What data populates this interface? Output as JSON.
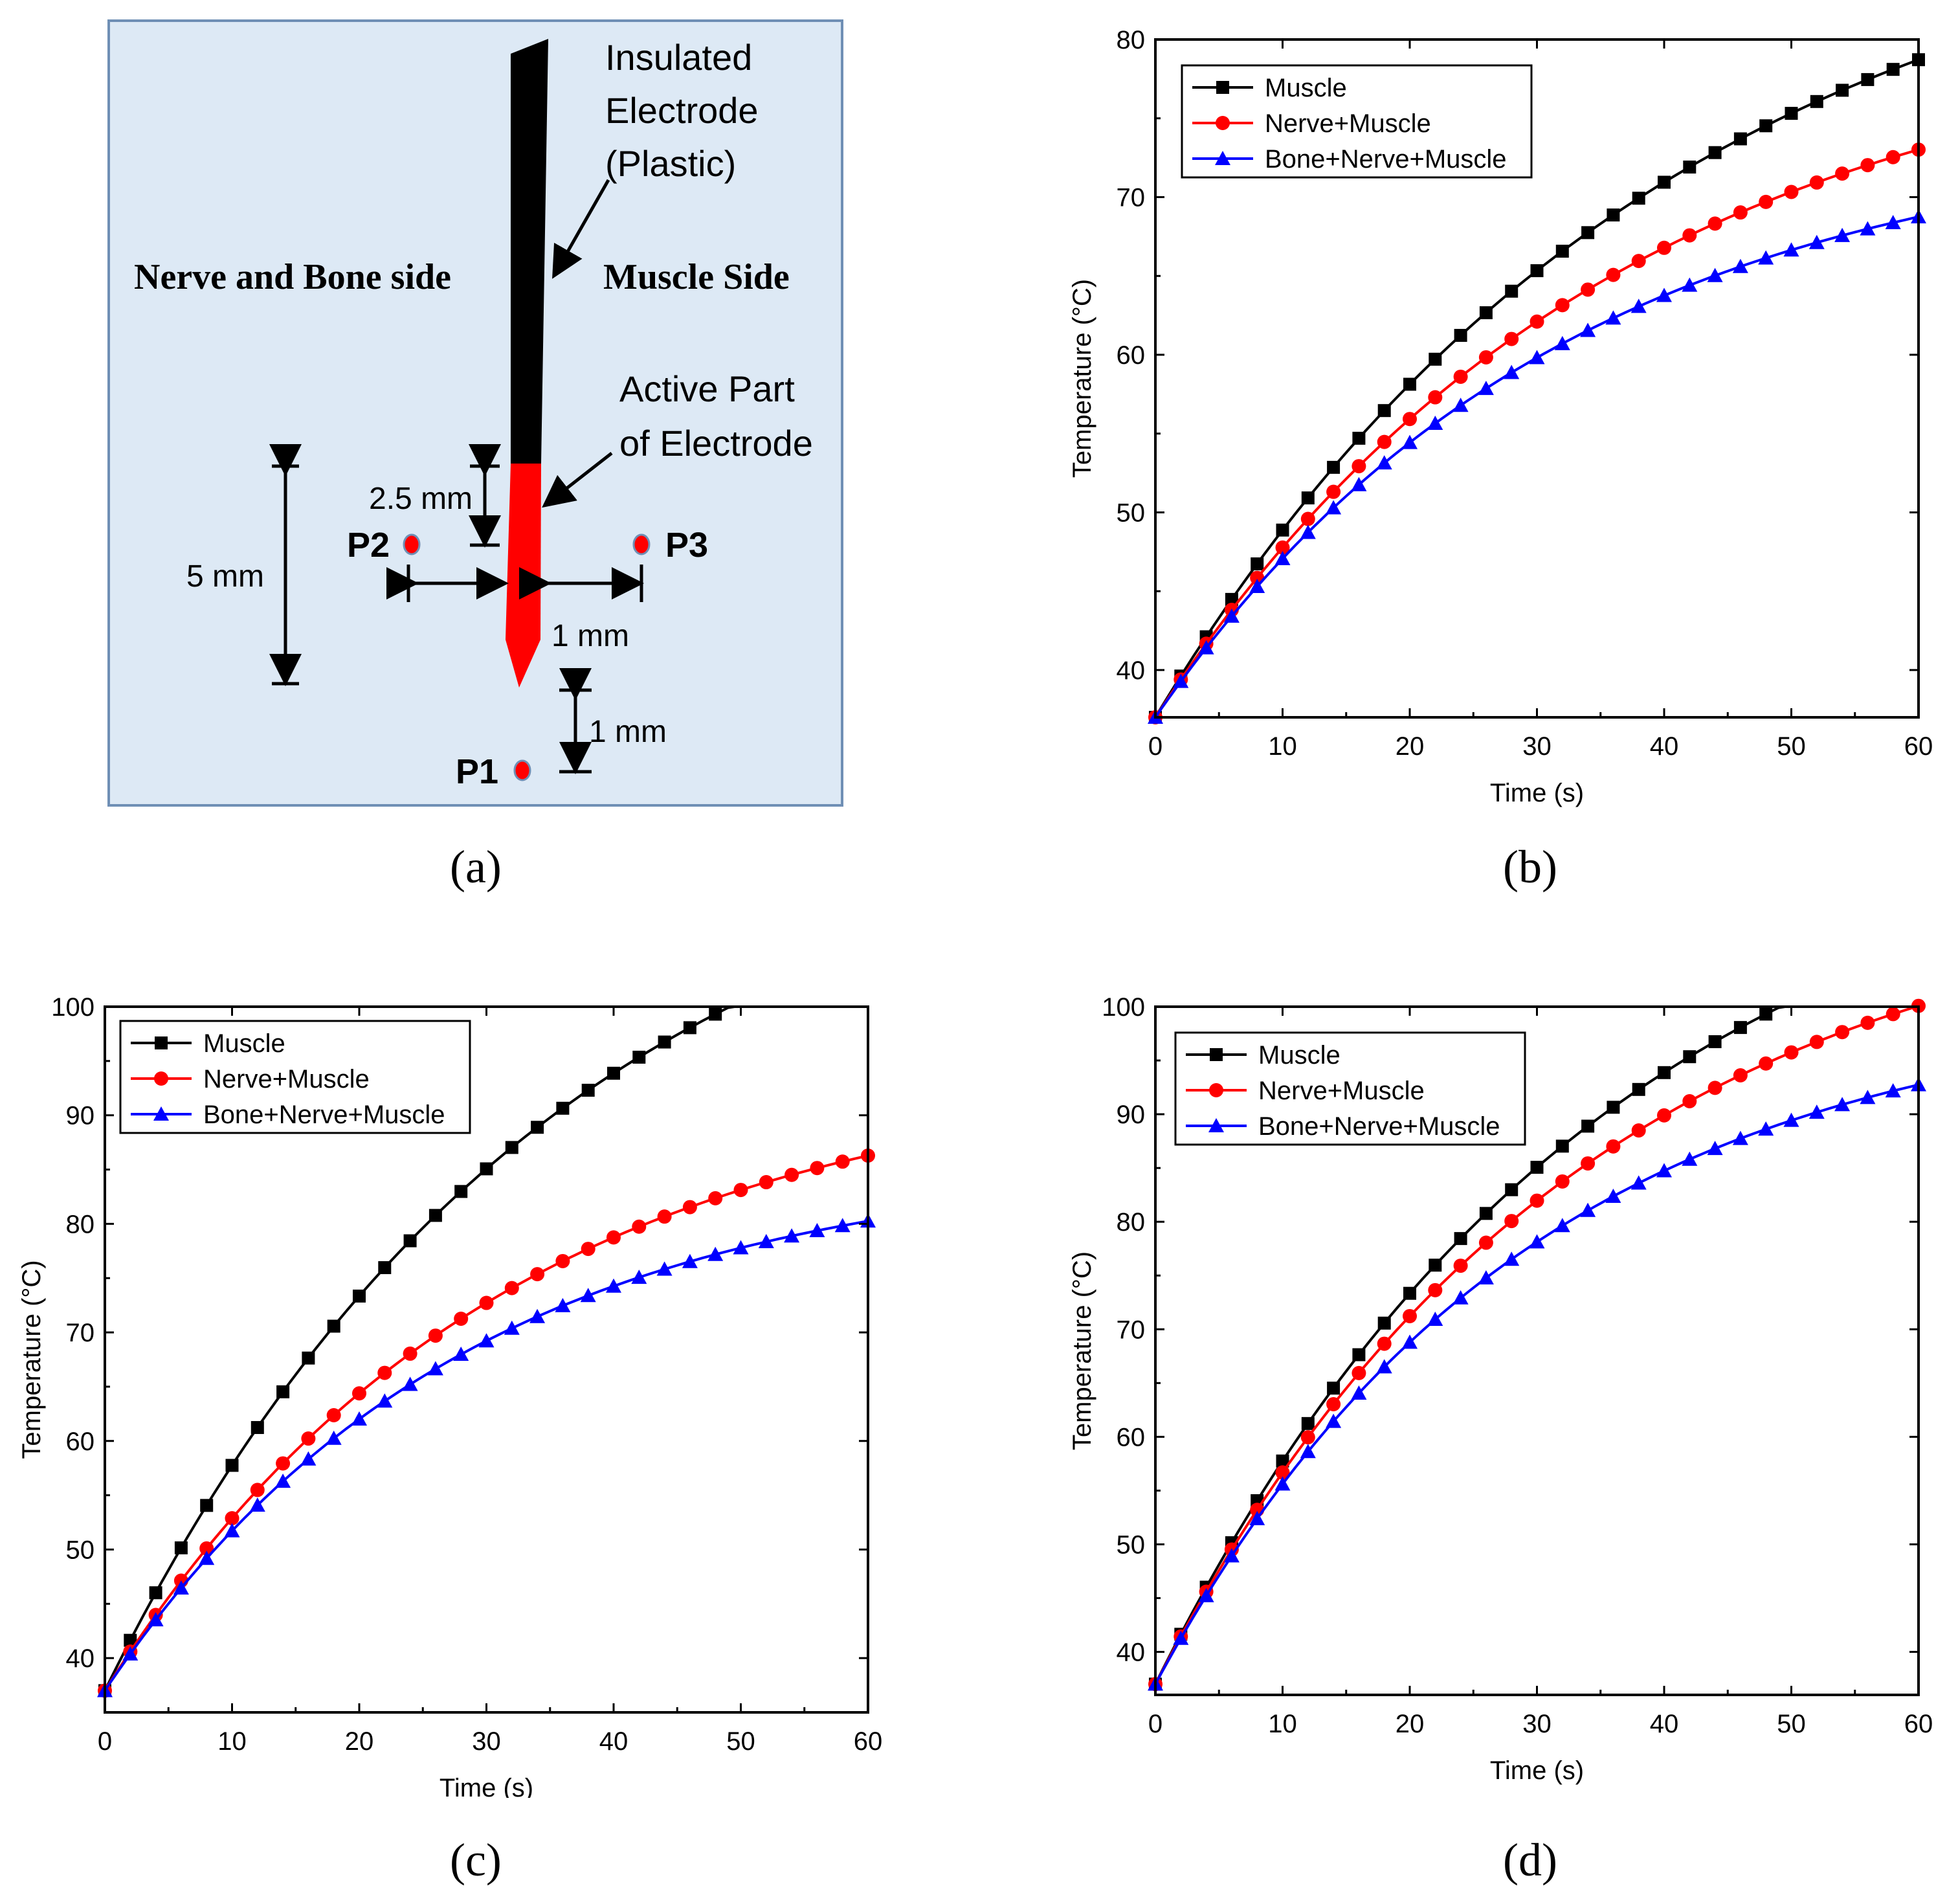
{
  "figure": {
    "panel_labels": [
      "(a)",
      "(b)",
      "(c)",
      "(d)"
    ]
  },
  "diagram": {
    "left_side_label": "Nerve and Bone side",
    "right_side_label": "Muscle Side",
    "insulated_label_lines": [
      "Insulated",
      "Electrode",
      "(Plastic)"
    ],
    "active_label_lines": [
      "Active Part",
      "of Electrode"
    ],
    "dim_2_5": "2.5 mm",
    "dim_5": "5 mm",
    "dim_1_horizontal": "1 mm",
    "dim_1_vertical": "1 mm",
    "points": [
      "P1",
      "P2",
      "P3"
    ],
    "colors": {
      "background": "#dde9f5",
      "insulated": "#000000",
      "active": "#ff0000",
      "point": "#ff0000"
    }
  },
  "series_style": [
    {
      "name": "Muscle",
      "color": "#000000",
      "marker": "square"
    },
    {
      "name": "Nerve+Muscle",
      "color": "#ff0000",
      "marker": "circle"
    },
    {
      "name": "Bone+Nerve+Muscle",
      "color": "#0000ff",
      "marker": "triangle"
    }
  ],
  "chart_data": [
    {
      "panel": "(b)",
      "type": "line",
      "xlabel": "Time (s)",
      "ylabel": "Temperature (°C)",
      "xlim": [
        0,
        60
      ],
      "ylim": [
        37,
        80
      ],
      "xticks": [
        0,
        10,
        20,
        30,
        40,
        50,
        60
      ],
      "yticks": [
        40,
        50,
        60,
        70,
        80
      ],
      "legend_position": "top-left",
      "series": [
        {
          "name": "Muscle",
          "T0": 37,
          "Tinf": 90.7,
          "tau": 40
        },
        {
          "name": "Nerve+Muscle",
          "T0": 37,
          "Tinf": 81.4,
          "tau": 36
        },
        {
          "name": "Bone+Nerve+Muscle",
          "T0": 37,
          "Tinf": 74.5,
          "tau": 32
        }
      ]
    },
    {
      "panel": "(c)",
      "type": "line",
      "xlabel": "Time (s)",
      "ylabel": "Temperature (°C)",
      "xlim": [
        0,
        60
      ],
      "ylim": [
        35,
        100
      ],
      "xticks": [
        0,
        10,
        20,
        30,
        40,
        50,
        60
      ],
      "yticks": [
        40,
        50,
        60,
        70,
        80,
        90,
        100
      ],
      "legend_position": "top-left",
      "series": [
        {
          "name": "Muscle",
          "T0": 37,
          "Tinf": 120.5,
          "tau": 35
        },
        {
          "name": "Nerve+Muscle",
          "T0": 37,
          "Tinf": 94.6,
          "tau": 31
        },
        {
          "name": "Bone+Nerve+Muscle",
          "T0": 37,
          "Tinf": 86.0,
          "tau": 28
        }
      ]
    },
    {
      "panel": "(d)",
      "type": "line",
      "xlabel": "Time (s)",
      "ylabel": "Temperature (°C)",
      "xlim": [
        0,
        60
      ],
      "ylim": [
        36,
        100
      ],
      "xticks": [
        0,
        10,
        20,
        30,
        40,
        50,
        60
      ],
      "yticks": [
        40,
        50,
        60,
        70,
        80,
        90,
        100
      ],
      "legend_position": "top-left",
      "series": [
        {
          "name": "Muscle",
          "T0": 37,
          "Tinf": 120.5,
          "tau": 35
        },
        {
          "name": "Nerve+Muscle",
          "T0": 37,
          "Tinf": 112.3,
          "tau": 33
        },
        {
          "name": "Bone+Nerve+Muscle",
          "T0": 37,
          "Tinf": 100.8,
          "tau": 29
        }
      ]
    }
  ]
}
